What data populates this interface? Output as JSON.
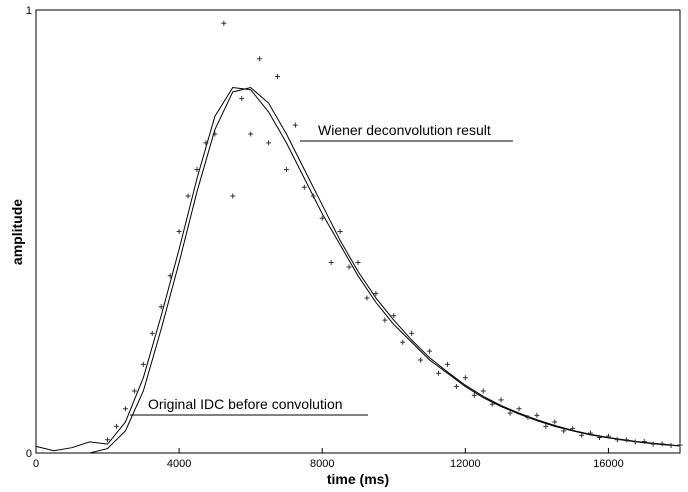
{
  "chart_data": {
    "type": "line",
    "x_label": "time (ms)",
    "y_label": "amplitude",
    "xlim": [
      0,
      18000
    ],
    "ylim": [
      0,
      1
    ],
    "xticks": [
      0,
      4000,
      8000,
      12000,
      16000
    ],
    "yticks": [
      0,
      1
    ],
    "annotations": [
      "Wiener deconvolution result",
      "Original IDC before convolution"
    ],
    "series": [
      {
        "mode": "lines",
        "color": "#000000",
        "x": [
          0,
          500,
          1000,
          1500,
          2000,
          2500,
          3000,
          3500,
          4000,
          4500,
          5000,
          5500,
          6000,
          6500,
          7000,
          7500,
          8000,
          8500,
          9000,
          9500,
          10000,
          10500,
          11000,
          11500,
          12000,
          12500,
          13000,
          13500,
          14000,
          14500,
          15000,
          15500,
          16000,
          16500,
          17000,
          17500,
          18000
        ],
        "values": [
          0.015,
          0.005,
          0.012,
          0.025,
          0.02,
          0.07,
          0.17,
          0.31,
          0.46,
          0.62,
          0.76,
          0.825,
          0.82,
          0.77,
          0.7,
          0.62,
          0.54,
          0.47,
          0.4,
          0.34,
          0.29,
          0.25,
          0.21,
          0.18,
          0.15,
          0.125,
          0.105,
          0.088,
          0.073,
          0.06,
          0.05,
          0.041,
          0.034,
          0.028,
          0.023,
          0.019,
          0.016
        ]
      },
      {
        "mode": "lines",
        "color": "#000000",
        "x": [
          0,
          500,
          1000,
          1500,
          2000,
          2500,
          3000,
          3500,
          4000,
          4500,
          5000,
          5500,
          6000,
          6500,
          7000,
          7500,
          8000,
          8500,
          9000,
          9500,
          10000,
          10500,
          11000,
          11500,
          12000,
          12500,
          13000,
          13500,
          14000,
          14500,
          15000,
          15500,
          16000,
          16500,
          17000,
          17500,
          18000
        ],
        "values": [
          0,
          0,
          0,
          0,
          0.01,
          0.05,
          0.14,
          0.28,
          0.43,
          0.59,
          0.73,
          0.815,
          0.825,
          0.79,
          0.72,
          0.64,
          0.56,
          0.48,
          0.41,
          0.35,
          0.3,
          0.255,
          0.215,
          0.183,
          0.153,
          0.128,
          0.107,
          0.09,
          0.075,
          0.062,
          0.051,
          0.042,
          0.035,
          0.029,
          0.024,
          0.02,
          0.016
        ]
      },
      {
        "mode": "markers",
        "color": "#333333",
        "x": [
          2000,
          2250,
          2500,
          2750,
          3000,
          3250,
          3500,
          3750,
          4000,
          4250,
          4500,
          4750,
          5000,
          5250,
          5500,
          5750,
          6000,
          6250,
          6500,
          6750,
          7000,
          7250,
          7500,
          7750,
          8000,
          8250,
          8500,
          8750,
          9000,
          9250,
          9500,
          9750,
          10000,
          10250,
          10500,
          10750,
          11000,
          11250,
          11500,
          11750,
          12000,
          12250,
          12500,
          12750,
          13000,
          13250,
          13500,
          13750,
          14000,
          14250,
          14500,
          14750,
          15000,
          15250,
          15500,
          15750,
          16000,
          16250,
          16500,
          16750,
          17000,
          17250,
          17500,
          17750,
          18000
        ],
        "values": [
          0.03,
          0.06,
          0.1,
          0.14,
          0.2,
          0.27,
          0.33,
          0.4,
          0.5,
          0.58,
          0.64,
          0.7,
          0.72,
          0.97,
          0.58,
          0.8,
          0.72,
          0.89,
          0.7,
          0.85,
          0.64,
          0.74,
          0.6,
          0.58,
          0.53,
          0.43,
          0.5,
          0.42,
          0.43,
          0.35,
          0.36,
          0.3,
          0.31,
          0.25,
          0.27,
          0.21,
          0.23,
          0.18,
          0.2,
          0.15,
          0.17,
          0.13,
          0.14,
          0.11,
          0.12,
          0.09,
          0.1,
          0.08,
          0.085,
          0.06,
          0.07,
          0.05,
          0.055,
          0.04,
          0.045,
          0.035,
          0.038,
          0.03,
          0.03,
          0.025,
          0.026,
          0.02,
          0.021,
          0.017,
          0.018
        ]
      }
    ]
  }
}
